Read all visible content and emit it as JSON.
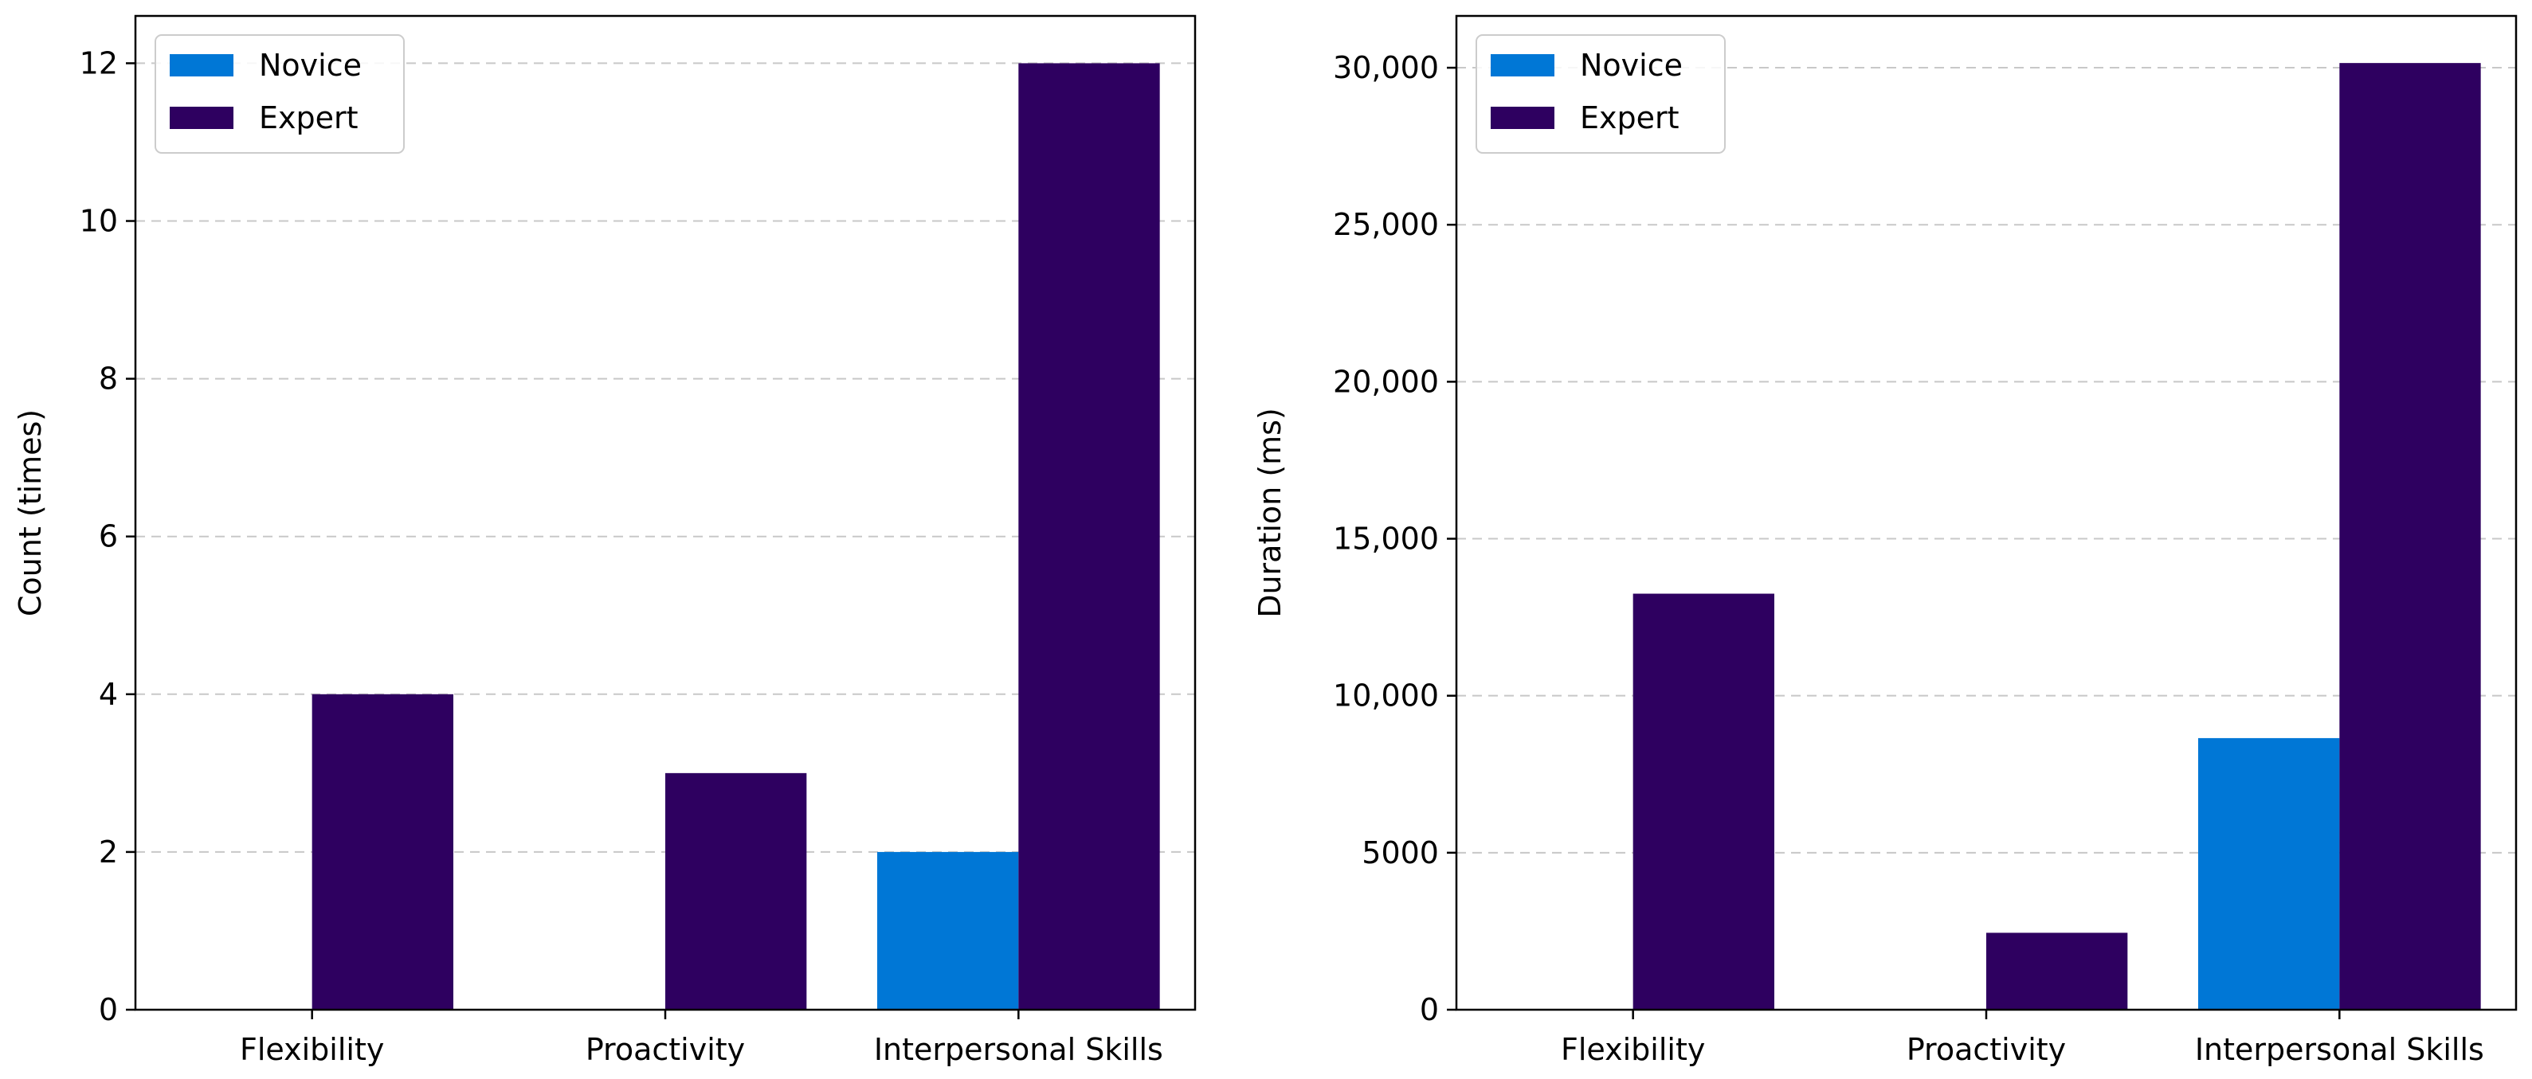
{
  "colors": {
    "novice": "#0077d6",
    "expert": "#2e0060",
    "grid": "#c8c8c8",
    "axis": "#000000"
  },
  "chart_data": [
    {
      "type": "bar",
      "title": "",
      "xlabel": "",
      "ylabel": "Count (times)",
      "categories": [
        "Flexibility",
        "Proactivity",
        "Interpersonal Skills"
      ],
      "series": [
        {
          "name": "Novice",
          "values": [
            0,
            0,
            2
          ]
        },
        {
          "name": "Expert",
          "values": [
            4,
            3,
            12
          ]
        }
      ],
      "ylim": [
        0,
        12.6
      ],
      "yticks": [
        0,
        2,
        4,
        6,
        8,
        10,
        12
      ],
      "ytick_labels": [
        "0",
        "2",
        "4",
        "6",
        "8",
        "10",
        "12"
      ],
      "grid": true,
      "legend": "top-left"
    },
    {
      "type": "bar",
      "title": "",
      "xlabel": "",
      "ylabel": "Duration (ms)",
      "categories": [
        "Flexibility",
        "Proactivity",
        "Interpersonal Skills"
      ],
      "series": [
        {
          "name": "Novice",
          "values": [
            0,
            0,
            8650
          ]
        },
        {
          "name": "Expert",
          "values": [
            13250,
            2450,
            30150
          ]
        }
      ],
      "ylim": [
        0,
        31650
      ],
      "yticks": [
        0,
        5000,
        10000,
        15000,
        20000,
        25000,
        30000
      ],
      "ytick_labels": [
        "0",
        "5000",
        "10,000",
        "15,000",
        "20,000",
        "25,000",
        "30,000"
      ],
      "grid": true,
      "legend": "top-left"
    }
  ]
}
